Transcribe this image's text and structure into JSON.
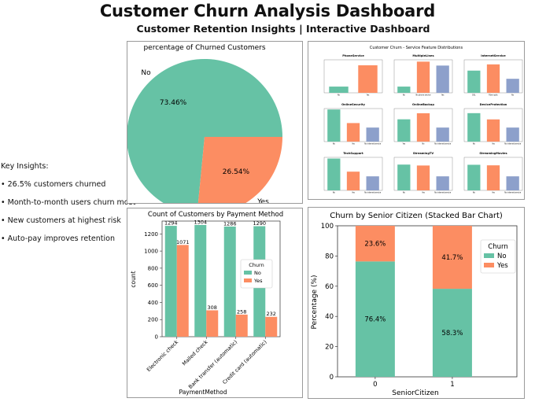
{
  "header": {
    "title": "Customer Churn Analysis Dashboard",
    "subtitle": "Customer Retention Insights | Interactive Dashboard"
  },
  "insights": {
    "title": "Key Insights:",
    "items": [
      "• 26.5% customers churned",
      "• Month-to-month users churn most",
      "• New customers at highest risk",
      "• Auto-pay improves retention"
    ]
  },
  "colors": {
    "no": "#66c2a5",
    "yes": "#fc8d62",
    "third": "#8da0cb"
  },
  "chart_data": [
    {
      "type": "pie",
      "title": "percentage of Churned Customers",
      "labels": [
        "No",
        "Yes"
      ],
      "values": [
        73.46,
        26.54
      ],
      "value_labels": [
        "73.46%",
        "26.54%"
      ]
    },
    {
      "type": "bar",
      "title": "Customer Churn - Service Feature Distributions",
      "subplots": [
        {
          "title": "PhoneService",
          "categories": [
            "No",
            "Yes"
          ],
          "values": [
            680,
            3000
          ]
        },
        {
          "title": "MultipleLines",
          "categories": [
            "No",
            "No phone service",
            "Yes"
          ],
          "values": [
            680,
            3400,
            2970
          ]
        },
        {
          "title": "InternetService",
          "categories": [
            "DSL",
            "Fiber optic",
            "No"
          ],
          "values": [
            2420,
            3100,
            1530
          ]
        },
        {
          "title": "OnlineSecurity",
          "categories": [
            "No",
            "Yes",
            "No internet service"
          ],
          "values": [
            3500,
            2020,
            1530
          ]
        },
        {
          "title": "OnlineBackup",
          "categories": [
            "Yes",
            "No",
            "No internet service"
          ],
          "values": [
            2430,
            3090,
            1530
          ]
        },
        {
          "title": "DeviceProtection",
          "categories": [
            "No",
            "Yes",
            "No internet service"
          ],
          "values": [
            3100,
            2420,
            1530
          ]
        },
        {
          "title": "TechSupport",
          "categories": [
            "No",
            "Yes",
            "No internet service"
          ],
          "values": [
            3470,
            2040,
            1530
          ]
        },
        {
          "title": "StreamingTV",
          "categories": [
            "No",
            "Yes",
            "No internet service"
          ],
          "values": [
            2810,
            2710,
            1530
          ]
        },
        {
          "title": "StreamingMovies",
          "categories": [
            "No",
            "Yes",
            "No internet service"
          ],
          "values": [
            2790,
            2730,
            1530
          ]
        }
      ]
    },
    {
      "type": "bar",
      "title": "Count of Customers by Payment Method",
      "xlabel": "PaymentMethod",
      "ylabel": "count",
      "categories": [
        "Electronic check",
        "Mailed check",
        "Bank transfer (automatic)",
        "Credit card (automatic)"
      ],
      "series": [
        {
          "name": "No",
          "values": [
            1294,
            1304,
            1286,
            1290
          ]
        },
        {
          "name": "Yes",
          "values": [
            1071,
            308,
            258,
            232
          ]
        }
      ],
      "legend_title": "Churn",
      "legend_position": "right",
      "ylim": [
        0,
        1350
      ],
      "yticks": [
        0,
        200,
        400,
        600,
        800,
        1000,
        1200
      ]
    },
    {
      "type": "bar",
      "stacked": true,
      "title": "Churn by Senior Citizen (Stacked Bar Chart)",
      "xlabel": "SeniorCitizen",
      "ylabel": "Percentage (%)",
      "categories": [
        "0",
        "1"
      ],
      "series": [
        {
          "name": "No",
          "values": [
            76.4,
            58.3
          ],
          "labels": [
            "76.4%",
            "58.3%"
          ]
        },
        {
          "name": "Yes",
          "values": [
            23.6,
            41.7
          ],
          "labels": [
            "23.6%",
            "41.7%"
          ]
        }
      ],
      "legend_title": "Churn",
      "legend_position": "upper right",
      "ylim": [
        0,
        100
      ],
      "yticks": [
        0,
        20,
        40,
        60,
        80,
        100
      ]
    }
  ]
}
